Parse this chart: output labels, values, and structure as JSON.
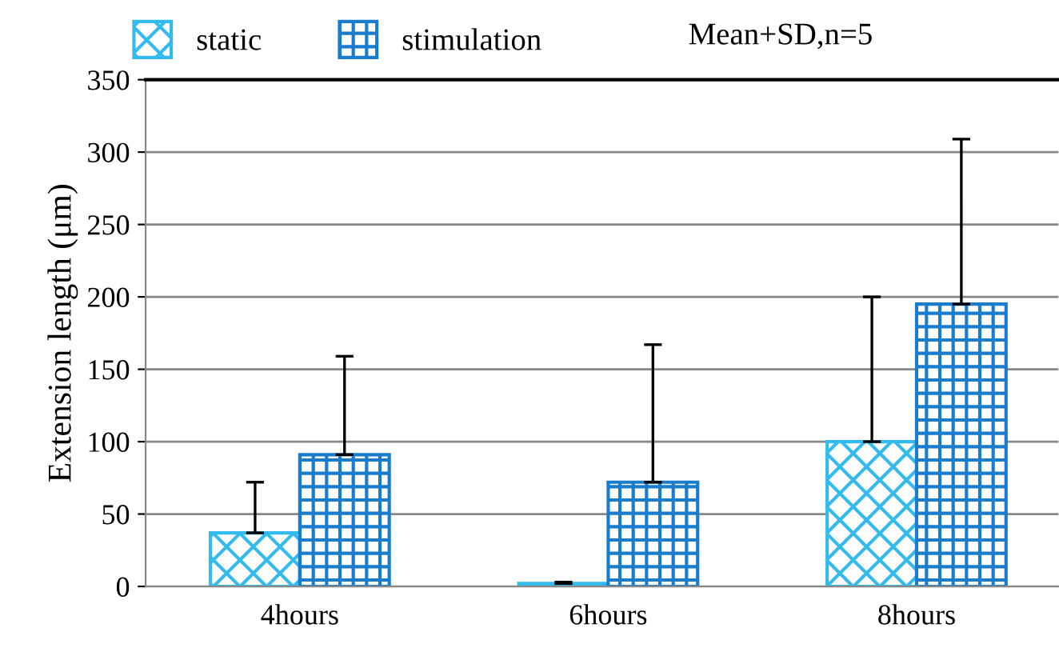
{
  "chart_data": {
    "type": "bar",
    "ylabel": "Extension length (μm)",
    "categories": [
      "4hours",
      "6hours",
      "8hours"
    ],
    "series": [
      {
        "name": "static",
        "color": "#33bbee",
        "values": [
          37,
          2,
          100
        ],
        "errors": [
          [
            37,
            72
          ],
          [
            2,
            3
          ],
          [
            100,
            200
          ]
        ]
      },
      {
        "name": "stimulation",
        "color": "#1a7ccc",
        "values": [
          91,
          72,
          195
        ],
        "errors": [
          [
            91,
            159
          ],
          [
            72,
            167
          ],
          [
            195,
            309
          ]
        ]
      }
    ],
    "ylim": [
      0,
      350
    ],
    "yticks": [
      0,
      50,
      100,
      150,
      200,
      250,
      300,
      350
    ],
    "grid": "y",
    "legend": "top left",
    "annotations": [
      "Mean+SD,n=5"
    ]
  }
}
